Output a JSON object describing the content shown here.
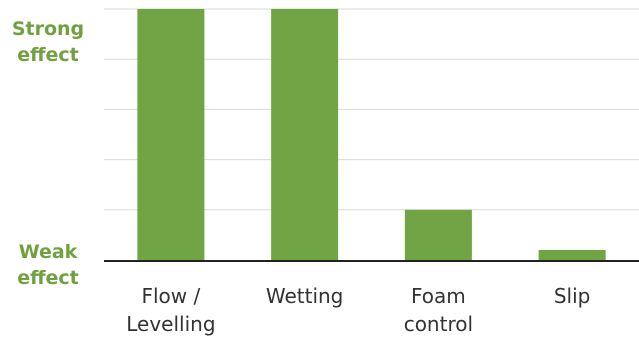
{
  "chart_data": {
    "type": "bar",
    "categories": [
      [
        "Flow /",
        "Levelling"
      ],
      [
        "Wetting"
      ],
      [
        "Foam",
        "control"
      ],
      [
        "Slip"
      ]
    ],
    "values": [
      5,
      5,
      1,
      0.2
    ],
    "ylim": [
      0,
      5
    ],
    "grid": true,
    "y_axis_labels": {
      "top": [
        "Strong",
        "effect"
      ],
      "bottom": [
        "Weak",
        "effect"
      ]
    },
    "title": "",
    "xlabel": "",
    "ylabel": ""
  },
  "colors": {
    "bar": "#70a444",
    "label": "#70a040",
    "grid": "#d9d9d9",
    "axis": "#222222",
    "text": "#333333"
  }
}
